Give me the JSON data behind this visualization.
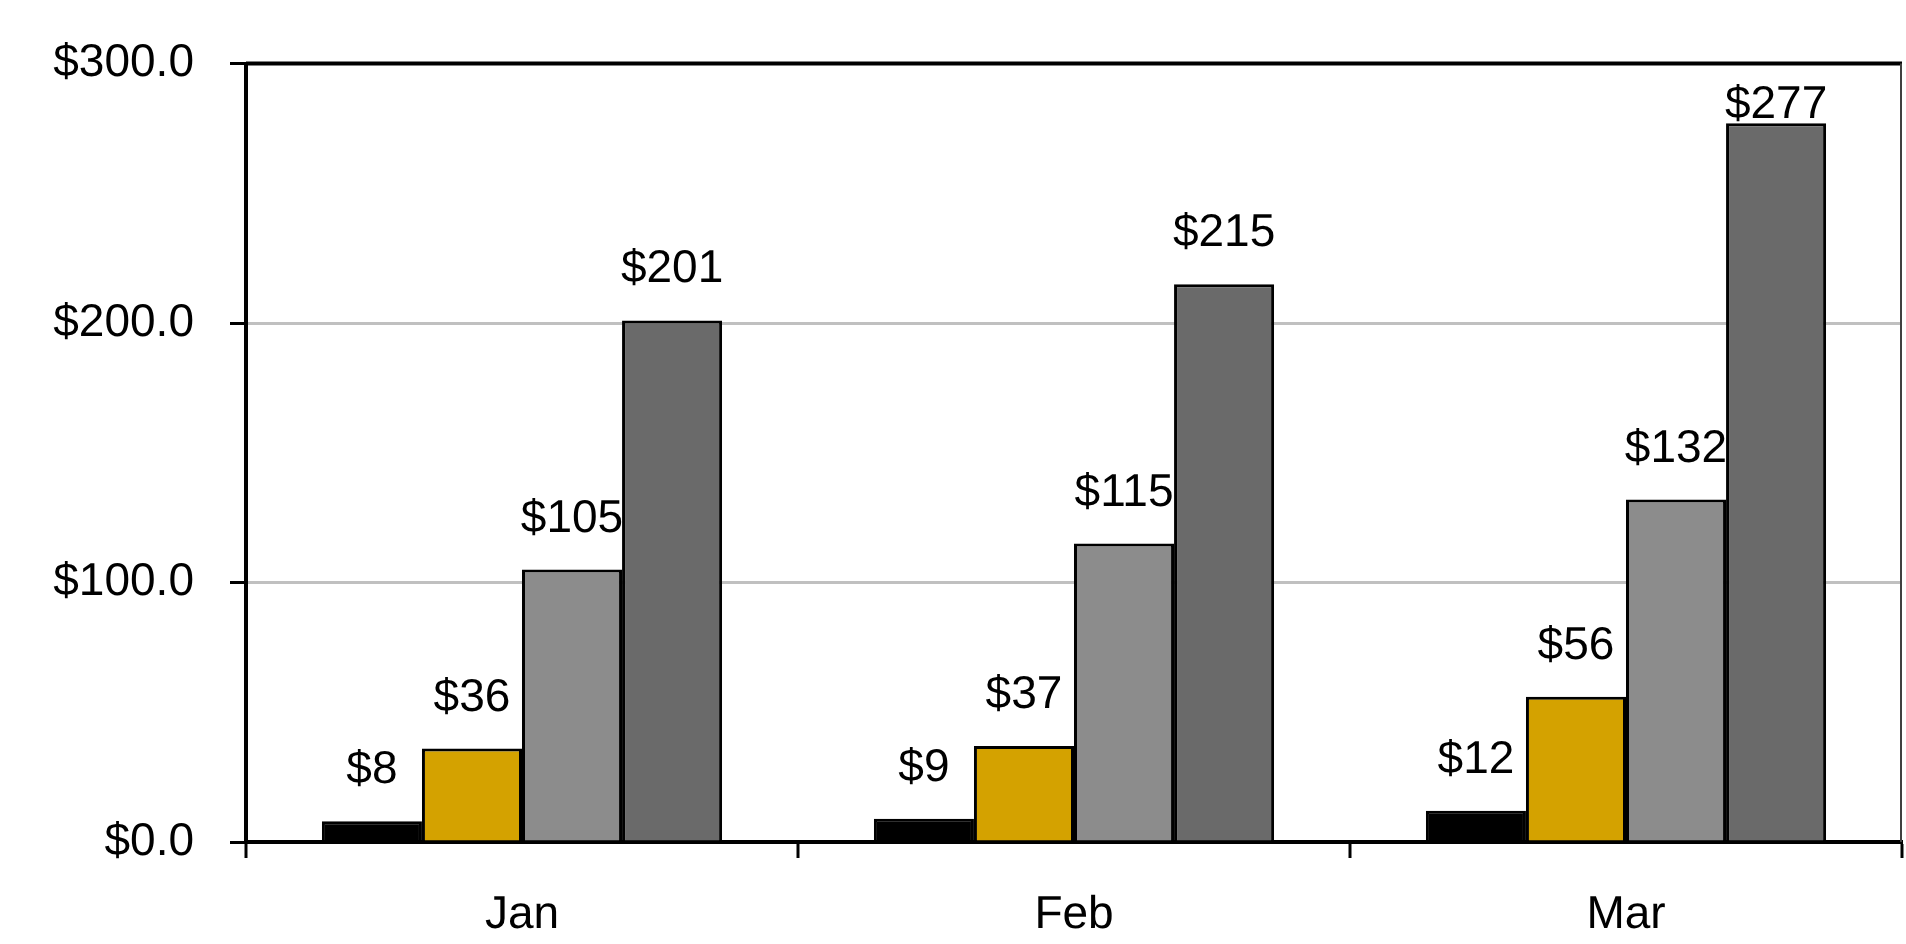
{
  "chart_data": {
    "type": "bar",
    "categories": [
      "Jan",
      "Feb",
      "Mar"
    ],
    "series": [
      {
        "color": "#000000",
        "values": [
          8,
          9,
          12
        ],
        "value_labels": [
          "$8",
          "$9",
          "$12"
        ]
      },
      {
        "color": "#d4a200",
        "values": [
          36,
          37,
          56
        ],
        "value_labels": [
          "$36",
          "$37",
          "$56"
        ]
      },
      {
        "color": "#8c8c8c",
        "values": [
          105,
          115,
          132
        ],
        "value_labels": [
          "$105",
          "$115",
          "$132"
        ]
      },
      {
        "color": "#6a6a6a",
        "values": [
          201,
          215,
          277
        ],
        "value_labels": [
          "$201",
          "$215",
          "$277"
        ]
      }
    ],
    "ylim": [
      0,
      300
    ],
    "yticks": [
      {
        "value": 0,
        "label": "$0.0"
      },
      {
        "value": 100,
        "label": "$100.0"
      },
      {
        "value": 200,
        "label": "$200.0"
      },
      {
        "value": 300,
        "label": "$300.0"
      }
    ],
    "grid": "y"
  }
}
